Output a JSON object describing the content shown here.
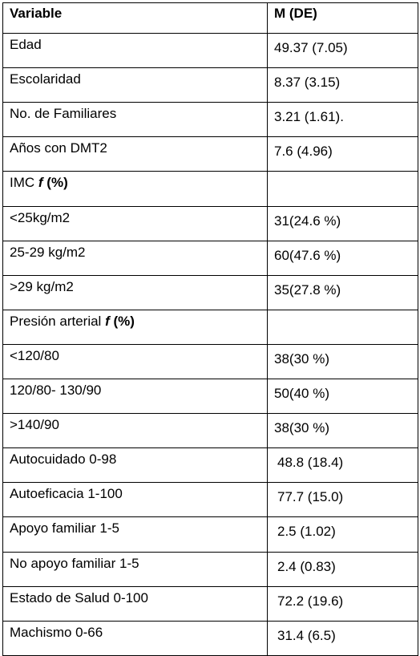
{
  "table": {
    "headers": [
      "Variable",
      "M (DE)"
    ],
    "rows": [
      {
        "variable": "Edad",
        "value": "49.37 (7.05)"
      },
      {
        "variable": "Escolaridad",
        "value": "8.37 (3.15)"
      },
      {
        "variable": "No. de Familiares",
        "value": "3.21 (1.61)."
      },
      {
        "variable": "Años con DMT2",
        "value": "7.6 (4.96)"
      },
      {
        "variable": "IMC ",
        "variable_emph": "f",
        "variable_tail": " (%)",
        "value": ""
      },
      {
        "variable": "<25kg/m2",
        "value": "31(24.6 %)"
      },
      {
        "variable": "25-29 kg/m2",
        "value": "60(47.6 %)"
      },
      {
        "variable": ">29 kg/m2",
        "value": "35(27.8 %)"
      },
      {
        "variable": "Presión arterial ",
        "variable_emph": "f",
        "variable_tail": " (%)",
        "value": ""
      },
      {
        "variable": "<120/80",
        "value": "38(30 %)"
      },
      {
        "variable": "120/80- 130/90",
        "value": "50(40 %)"
      },
      {
        "variable": ">140/90",
        "value": "38(30 %)"
      },
      {
        "variable": "Autocuidado 0-98",
        "value": "48.8 (18.4)"
      },
      {
        "variable": "Autoeficacia 1-100",
        "value": "77.7 (15.0)"
      },
      {
        "variable": "Apoyo familiar 1-5",
        "value": "2.5 (1.02)"
      },
      {
        "variable": "No apoyo familiar 1-5",
        "value": "2.4 (0.83)"
      },
      {
        "variable": "Estado de Salud 0-100",
        "value": "72.2 (19.6)"
      },
      {
        "variable": "Machismo 0-66",
        "value": "31.4 (6.5)"
      }
    ]
  }
}
